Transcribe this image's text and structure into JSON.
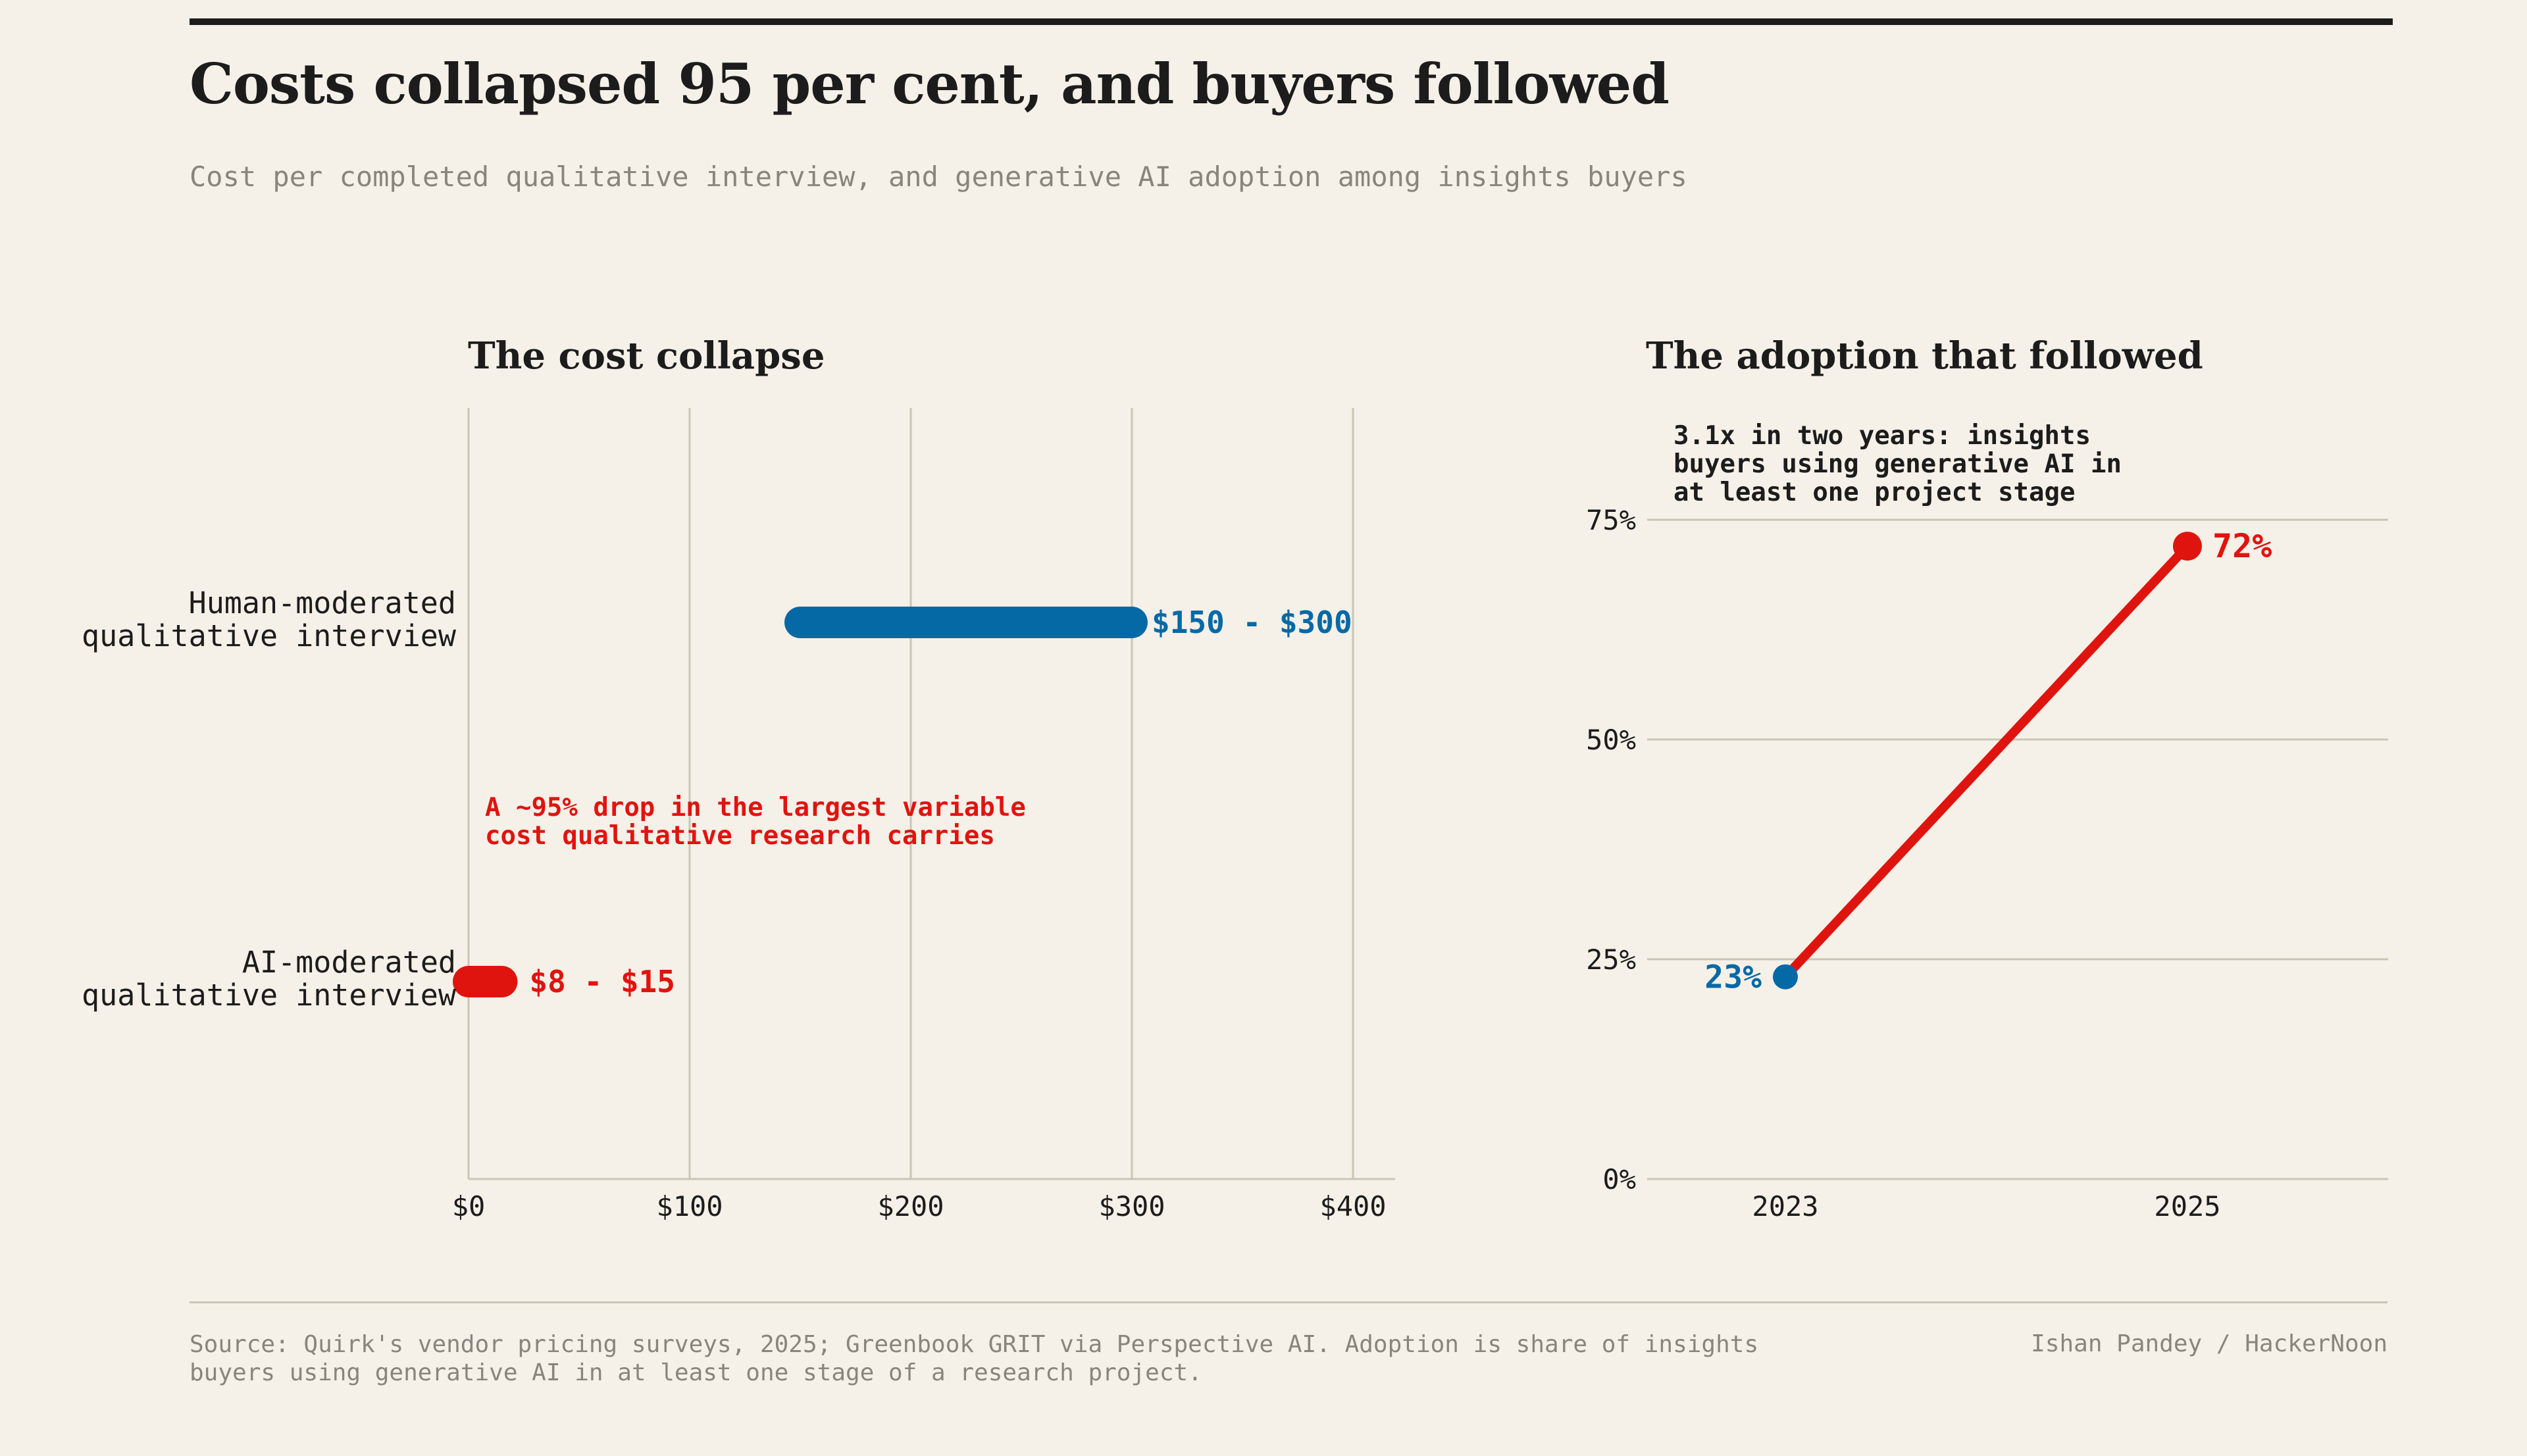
{
  "title": "Costs collapsed 95 per cent, and buyers followed",
  "subtitle": "Cost per completed qualitative interview, and generative AI adoption among insights buyers",
  "colors": {
    "background": "#f5f0e8",
    "human": "#0569a6",
    "ai": "#e0140f",
    "grid": "#c9c6b6",
    "text": "#1c1c1c",
    "muted": "#8a857c"
  },
  "chart_data": [
    {
      "type": "range-bar",
      "title": "The cost collapse",
      "xlim": [
        0,
        420
      ],
      "xticks": [
        0,
        100,
        200,
        300,
        400
      ],
      "xtick_labels": [
        "$0",
        "$100",
        "$200",
        "$300",
        "$400"
      ],
      "grid": true,
      "rows": [
        {
          "label_lines": [
            "Human-moderated",
            "qualitative interview"
          ],
          "low": 150,
          "high": 300,
          "value_label": "$150 - $300",
          "color": "#0569a6"
        },
        {
          "label_lines": [
            "AI-moderated",
            "qualitative interview"
          ],
          "low": 8,
          "high": 15,
          "value_label": "$8 - $15",
          "color": "#e0140f"
        }
      ],
      "annotation": {
        "lines": [
          "A ~95% drop in the largest variable",
          "cost qualitative research carries"
        ],
        "color": "#e0140f"
      }
    },
    {
      "type": "line",
      "title": "The adoption that followed",
      "x": [
        "2023",
        "2025"
      ],
      "values": [
        23,
        72
      ],
      "point_labels": [
        "23%",
        "72%"
      ],
      "point_colors": [
        "#0569a6",
        "#e0140f"
      ],
      "line_color": "#e0140f",
      "ylim": [
        0,
        75
      ],
      "yticks": [
        0,
        25,
        50,
        75
      ],
      "ytick_labels": [
        "0%",
        "25%",
        "50%",
        "75%"
      ],
      "grid": true,
      "annotation": {
        "lines": [
          "3.1x in two years: insights",
          "buyers using generative AI in",
          "at least one project stage"
        ]
      }
    }
  ],
  "source": "Source: Quirk's vendor pricing surveys, 2025; Greenbook GRIT via Perspective AI. Adoption is share of insights buyers using generative AI in at least one stage of a research project.",
  "credit": "Ishan Pandey / HackerNoon"
}
